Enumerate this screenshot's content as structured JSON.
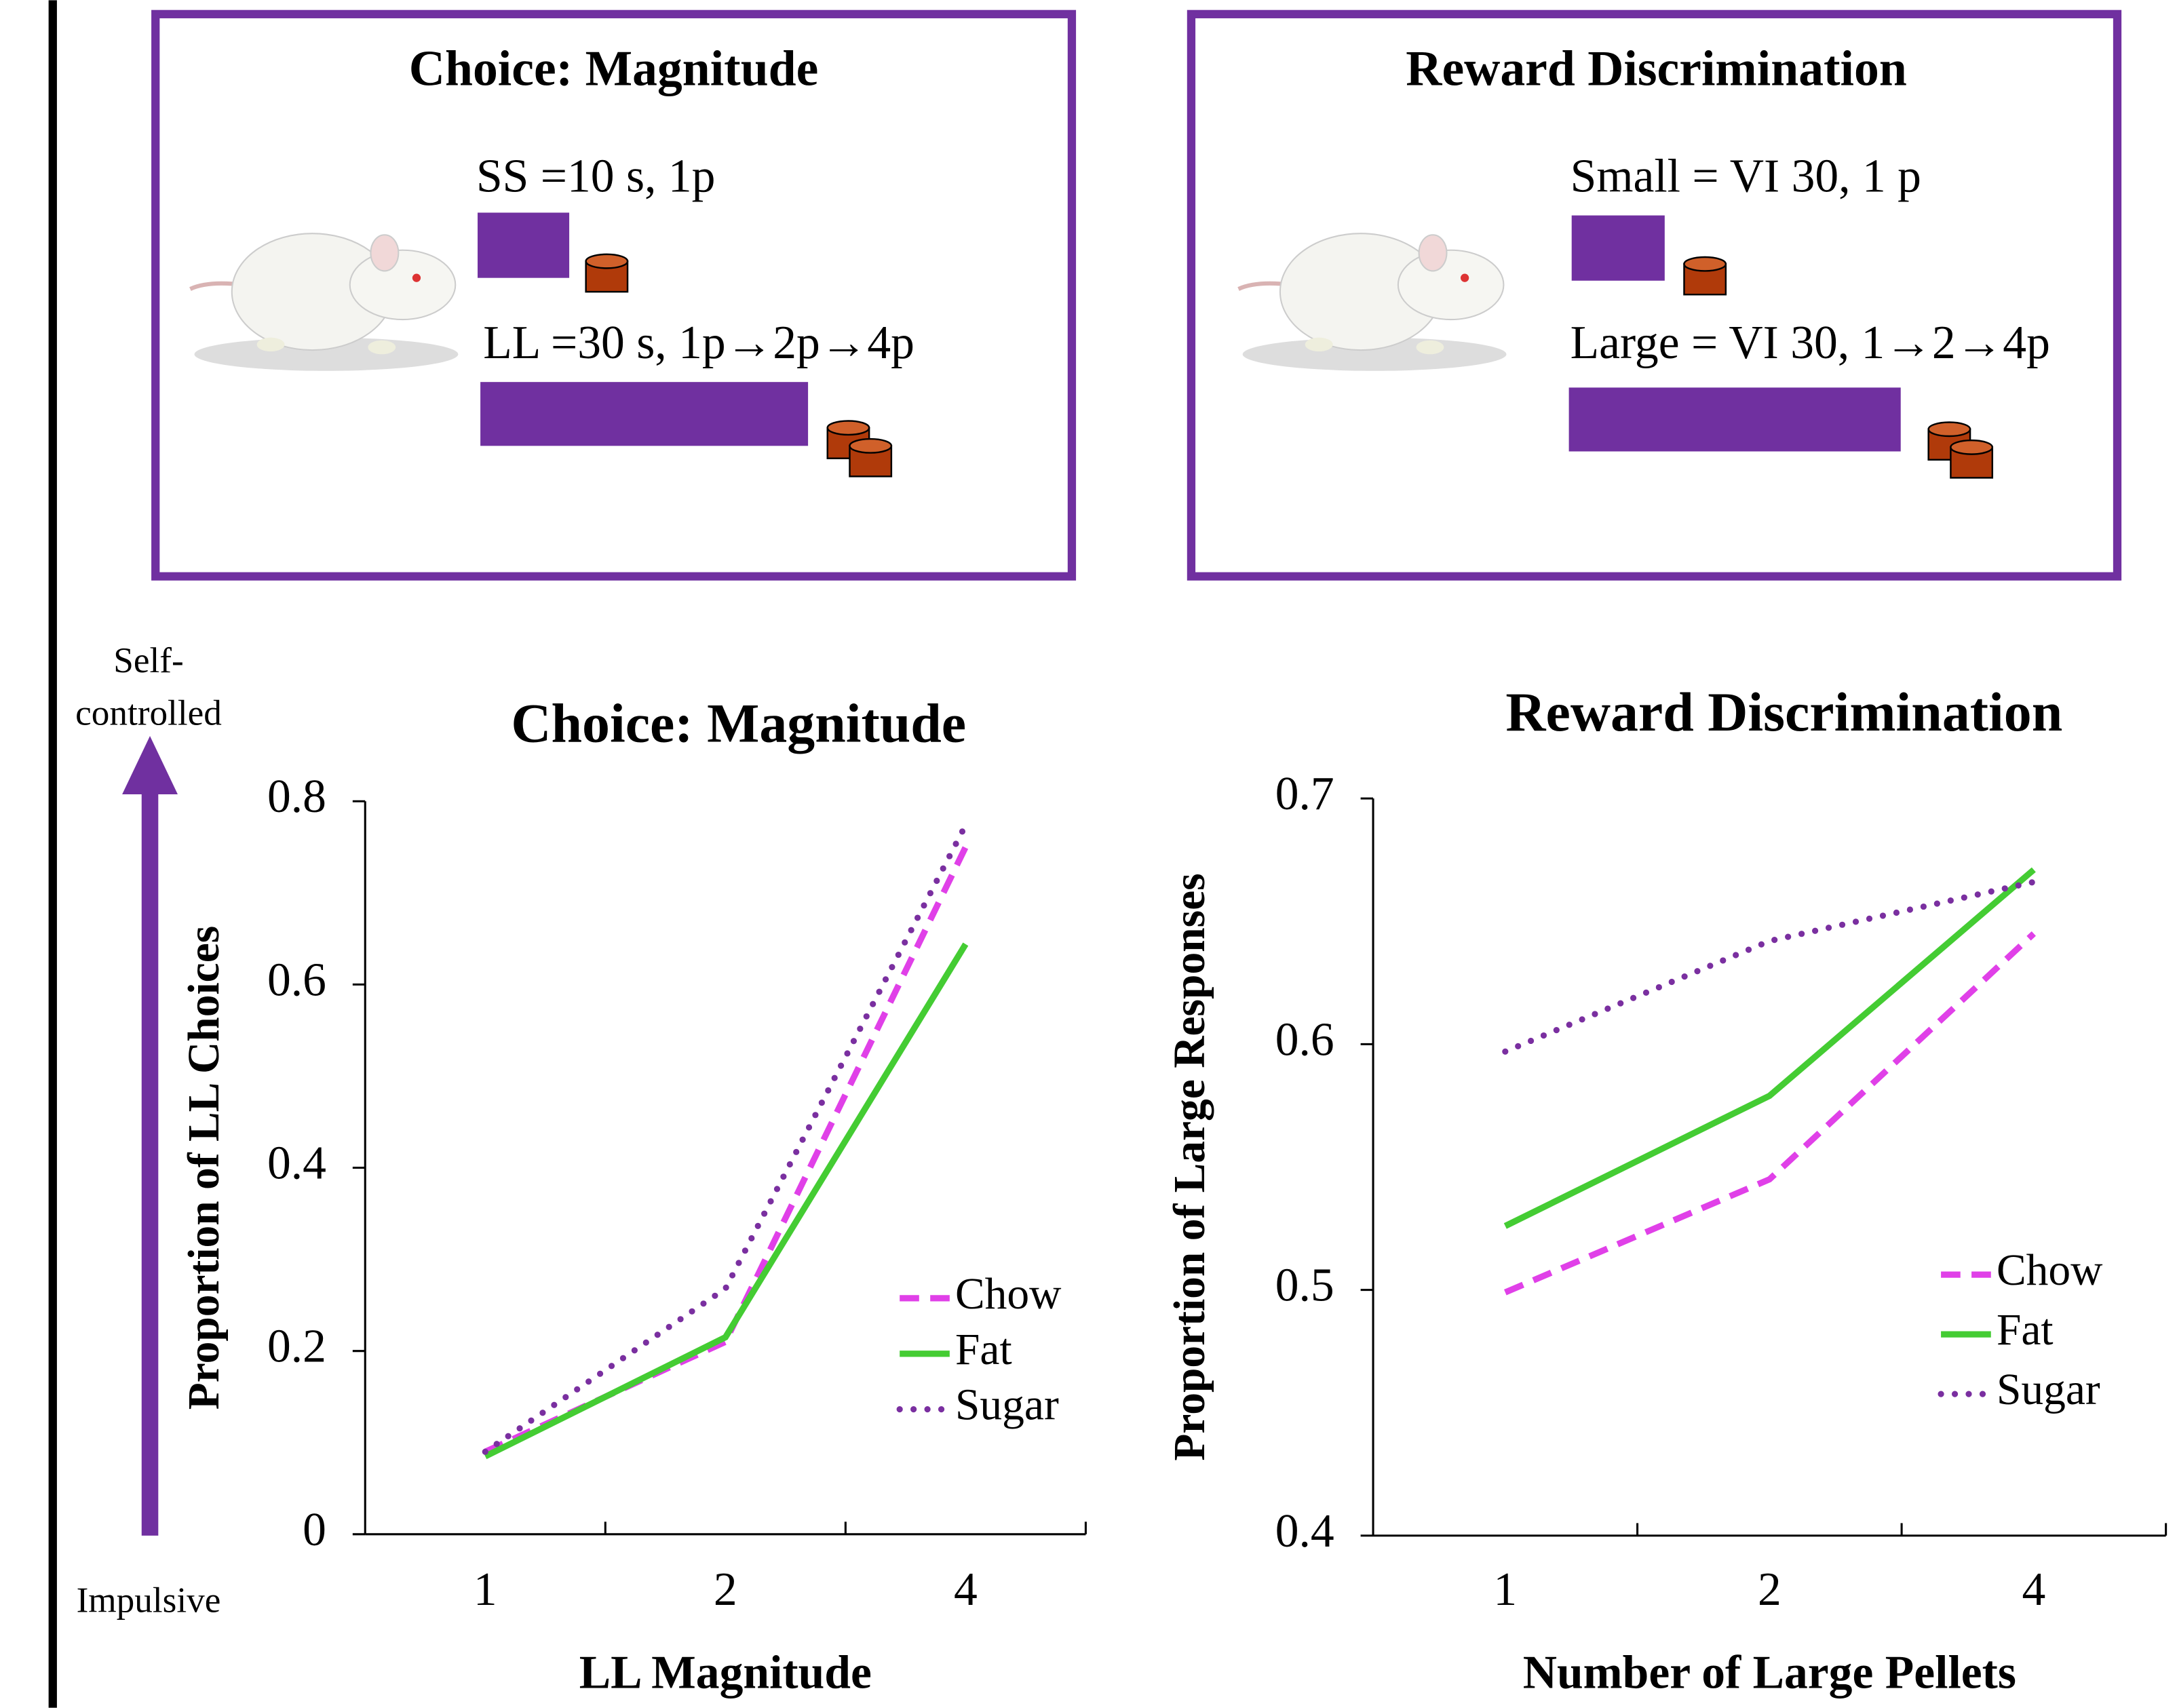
{
  "panels": [
    {
      "title": "Choice: Magnitude",
      "lines": [
        "SS =10 s, 1p",
        "LL =30 s,  1p→2p→4p"
      ]
    },
    {
      "title": "Reward Discrimination",
      "lines": [
        "Small = VI 30, 1 p",
        "Large = VI 30, 1→2→4p"
      ]
    }
  ],
  "arrow": {
    "top": [
      "Self-",
      "controlled"
    ],
    "bottom": "Impulsive",
    "color": "#7030a0"
  },
  "chart_data": [
    {
      "type": "line",
      "title": "Choice: Magnitude",
      "x_label": "LL Magnitude",
      "y_label": "Proportion of LL Choices",
      "categories": [
        "1",
        "2",
        "4"
      ],
      "ylim": [
        0,
        0.8
      ],
      "yticks": [
        0,
        0.2,
        0.4,
        0.6,
        0.8
      ],
      "series": [
        {
          "name": "Chow",
          "color": "#e040e8",
          "style": "dashed",
          "values": [
            0.09,
            0.21,
            0.75
          ]
        },
        {
          "name": "Fat",
          "color": "#44cc33",
          "style": "solid",
          "values": [
            0.085,
            0.215,
            0.644
          ]
        },
        {
          "name": "Sugar",
          "color": "#7a2fa0",
          "style": "dotted",
          "values": [
            0.09,
            0.268,
            0.774
          ]
        }
      ]
    },
    {
      "type": "line",
      "title": "Reward Discrimination",
      "x_label": "Number of Large Pellets",
      "y_label": "Proportion of Large Responses",
      "categories": [
        "1",
        "2",
        "4"
      ],
      "ylim": [
        0.4,
        0.7
      ],
      "yticks": [
        0.4,
        0.5,
        0.6,
        0.7
      ],
      "series": [
        {
          "name": "Chow",
          "color": "#e040e8",
          "style": "dashed",
          "values": [
            0.499,
            0.545,
            0.645
          ]
        },
        {
          "name": "Fat",
          "color": "#44cc33",
          "style": "solid",
          "values": [
            0.526,
            0.579,
            0.671
          ]
        },
        {
          "name": "Sugar",
          "color": "#7a2fa0",
          "style": "dotted",
          "values": [
            0.597,
            0.642,
            0.666
          ]
        }
      ]
    }
  ]
}
